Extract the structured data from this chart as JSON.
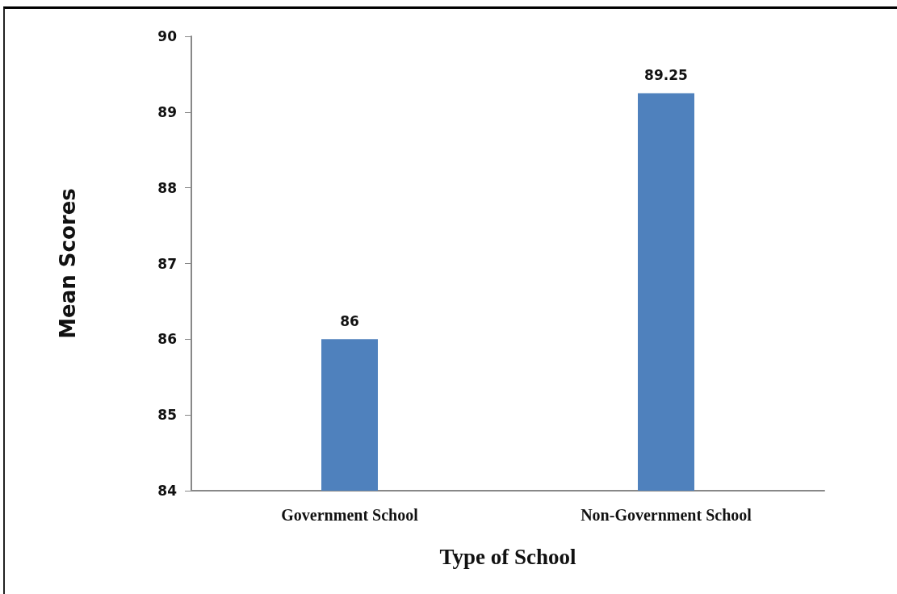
{
  "chart_data": {
    "type": "bar",
    "xlabel": "Type of School",
    "ylabel": "Mean Scores",
    "categories": [
      "Government School",
      "Non-Government School"
    ],
    "values": [
      86,
      89.25
    ],
    "color": "#4f81bd",
    "data_labels": true,
    "ylim": [
      84,
      90
    ],
    "yticks": [
      84,
      85,
      86,
      87,
      88,
      89,
      90
    ],
    "grid": false
  }
}
